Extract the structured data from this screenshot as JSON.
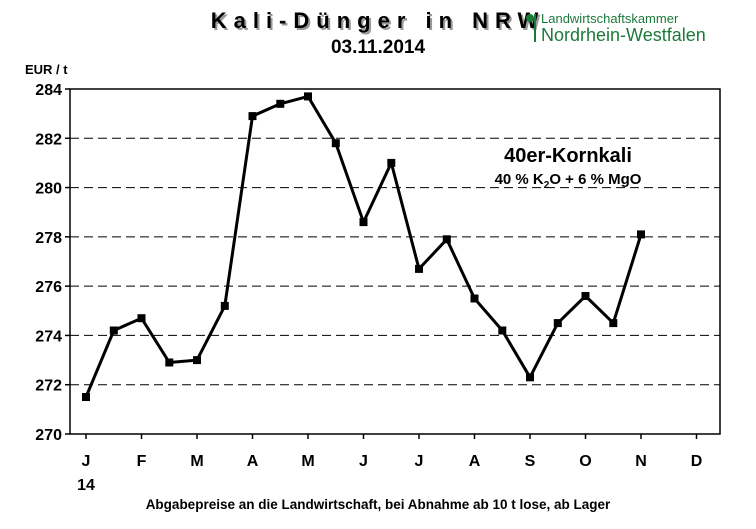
{
  "header": {
    "title": "Kali-Dünger in NRW",
    "subtitle": "03.11.2014"
  },
  "logo": {
    "line1": "Landwirtschaftskammer",
    "line2": "Nordrhein-Westfalen"
  },
  "footer": {
    "caption": "Abgabepreise an die Landwirtschaft, bei Abnahme ab 10 t lose, ab Lager"
  },
  "colors": {
    "line": "#000000",
    "grid": "#000000",
    "logo": "#1b7a3a"
  },
  "chart_data": {
    "type": "line",
    "title": "40er-Kornkali",
    "annotation_title": "40er-Kornkali",
    "annotation_formula": "40 %  K2O + 6 % MgO",
    "ylabel": "EUR / t",
    "xlabel": "",
    "ylim": [
      270,
      284
    ],
    "yticks": [
      270,
      272,
      274,
      276,
      278,
      280,
      282,
      284
    ],
    "grid": "horizontal dashed",
    "months": [
      "J",
      "F",
      "M",
      "A",
      "M",
      "J",
      "J",
      "A",
      "S",
      "O",
      "N",
      "D"
    ],
    "year_label": "14",
    "x": [
      0.0,
      0.5,
      1.0,
      1.5,
      2.0,
      2.5,
      3.0,
      3.5,
      4.0,
      4.5,
      5.0,
      5.5,
      6.0,
      6.5,
      7.0,
      7.5,
      8.0,
      8.5,
      9.0,
      9.5,
      10.0
    ],
    "values": [
      271.5,
      274.2,
      274.7,
      272.9,
      273.0,
      275.2,
      282.9,
      283.4,
      283.7,
      281.8,
      278.6,
      281.0,
      276.7,
      277.9,
      275.5,
      274.2,
      272.3,
      274.5,
      275.6,
      274.5,
      278.1
    ]
  }
}
